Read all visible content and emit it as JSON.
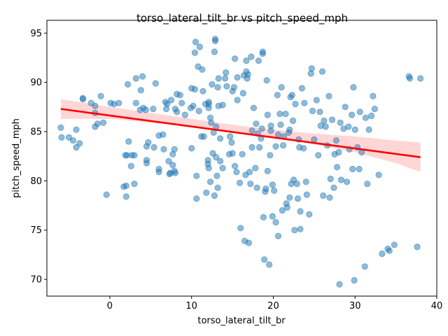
{
  "chart_data": {
    "type": "scatter",
    "title": "torso_lateral_tilt_br vs pitch_speed_mph",
    "xlabel": "torso_lateral_tilt_br",
    "ylabel": "pitch_speed_mph",
    "xlim": [
      -7.7,
      40
    ],
    "ylim": [
      68.3,
      96.3
    ],
    "xticks": [
      0,
      10,
      20,
      30,
      40
    ],
    "yticks": [
      70,
      75,
      80,
      85,
      90,
      95
    ],
    "grid": false,
    "point_color": "#1f77b4",
    "regression_color": "#ff0000",
    "band_color": "#ffbbbb",
    "regression": {
      "x0": -6,
      "y0": 87.3,
      "x1": 38,
      "y1": 82.4
    },
    "confidence_band": {
      "x": [
        -6,
        0,
        5,
        10,
        15,
        20,
        25,
        30,
        35,
        38
      ],
      "upper": [
        88.3,
        87.5,
        86.9,
        86.3,
        85.7,
        85.2,
        84.8,
        84.5,
        84.1,
        83.9
      ],
      "lower": [
        86.3,
        86.3,
        85.9,
        85.5,
        85.0,
        84.4,
        83.7,
        82.9,
        81.8,
        80.9
      ]
    },
    "points": [
      [
        -6,
        85.4
      ],
      [
        -5.9,
        84.4
      ],
      [
        -5.0,
        84.4
      ],
      [
        -4.5,
        84.1
      ],
      [
        -4.1,
        85.2
      ],
      [
        -4.1,
        83.4
      ],
      [
        -3.7,
        83.8
      ],
      [
        -3.3,
        88.3
      ],
      [
        -3.3,
        88.4
      ],
      [
        -2.3,
        87.9
      ],
      [
        -1.8,
        87.6
      ],
      [
        -1.8,
        86.9
      ],
      [
        -1.8,
        85.5
      ],
      [
        -1.5,
        85.8
      ],
      [
        -1.1,
        88.6
      ],
      [
        -0.8,
        85.9
      ],
      [
        -0.4,
        78.6
      ],
      [
        0.1,
        87.9
      ],
      [
        0.5,
        87.8
      ],
      [
        1.1,
        87.9
      ],
      [
        1.7,
        79.4
      ],
      [
        1.9,
        82.6
      ],
      [
        2.0,
        79.5
      ],
      [
        2.0,
        78.4
      ],
      [
        2.1,
        82.6
      ],
      [
        2.2,
        89.8
      ],
      [
        2.3,
        84
      ],
      [
        2.6,
        81.5
      ],
      [
        2.7,
        82.6
      ],
      [
        3,
        82.6
      ],
      [
        3,
        79.7
      ],
      [
        3.2,
        90.4
      ],
      [
        3.2,
        87.9
      ],
      [
        3.7,
        87.2
      ],
      [
        3.8,
        89.2
      ],
      [
        4,
        90.6
      ],
      [
        4.1,
        87.4
      ],
      [
        4.4,
        87.2
      ],
      [
        4.5,
        83.5
      ],
      [
        4.5,
        82.1
      ],
      [
        4.5,
        81.8
      ],
      [
        4.7,
        83.9
      ],
      [
        5.3,
        87.3
      ],
      [
        5.4,
        83.4
      ],
      [
        5.6,
        89.9
      ],
      [
        6,
        84.6
      ],
      [
        6,
        81.2
      ],
      [
        6,
        80.9
      ],
      [
        6.5,
        84.7
      ],
      [
        6.6,
        83.2
      ],
      [
        6.8,
        88
      ],
      [
        6.9,
        87.3
      ],
      [
        7.0,
        87.8
      ],
      [
        7.2,
        82
      ],
      [
        7.3,
        80.7
      ],
      [
        7.4,
        80.8
      ],
      [
        7.5,
        88.2
      ],
      [
        7.7,
        82.7
      ],
      [
        7.7,
        81.6
      ],
      [
        7.9,
        83.2
      ],
      [
        7.9,
        81
      ],
      [
        8,
        80.8
      ],
      [
        8,
        87.3
      ],
      [
        8.2,
        88.8
      ],
      [
        8.2,
        87
      ],
      [
        8.6,
        88.7
      ],
      [
        8.8,
        87.9
      ],
      [
        9.2,
        86.7
      ],
      [
        9.9,
        87.4
      ],
      [
        10,
        83.3
      ],
      [
        10,
        89.4
      ],
      [
        10.2,
        87.6
      ],
      [
        10.4,
        89.3
      ],
      [
        10.4,
        93
      ],
      [
        10.5,
        94.1
      ],
      [
        10.6,
        78.2
      ],
      [
        10.6,
        80.5
      ],
      [
        10.8,
        91.6
      ],
      [
        10.9,
        87.1
      ],
      [
        11,
        93.6
      ],
      [
        11.2,
        84.5
      ],
      [
        11.3,
        91.3
      ],
      [
        11.4,
        89.1
      ],
      [
        11.5,
        84.5
      ],
      [
        11.7,
        87.8
      ],
      [
        11.8,
        78.8
      ],
      [
        12,
        82.1
      ],
      [
        12,
        81.7
      ],
      [
        12.1,
        81.3
      ],
      [
        12.1,
        87.8
      ],
      [
        12.1,
        88
      ],
      [
        12.1,
        87.4
      ],
      [
        12.3,
        86.4
      ],
      [
        12.3,
        79.9
      ],
      [
        12.4,
        85.9
      ],
      [
        12.5,
        89.8
      ],
      [
        12.6,
        82.8
      ],
      [
        12.7,
        84.9
      ],
      [
        12.8,
        78.5
      ],
      [
        12.8,
        93.1
      ],
      [
        12.9,
        94.2
      ],
      [
        12.9,
        94.4
      ],
      [
        13,
        85.5
      ],
      [
        13,
        82.4
      ],
      [
        13.1,
        80.5
      ],
      [
        13.2,
        79.3
      ],
      [
        13.2,
        89.5
      ],
      [
        13.3,
        87.6
      ],
      [
        13.3,
        90.4
      ],
      [
        13.5,
        84.3
      ],
      [
        13.5,
        82
      ],
      [
        13.8,
        81.3
      ],
      [
        13.8,
        87.7
      ],
      [
        14.1,
        90.4
      ],
      [
        14.2,
        91
      ],
      [
        14.3,
        89.6
      ],
      [
        14.6,
        82.7
      ],
      [
        14.7,
        84.5
      ],
      [
        14.9,
        83.9
      ],
      [
        15.0,
        82.8
      ],
      [
        15.0,
        89.1
      ],
      [
        15.2,
        89.5
      ],
      [
        15.3,
        92.4
      ],
      [
        15.3,
        81.5
      ],
      [
        15.5,
        80.9
      ],
      [
        15.6,
        88.2
      ],
      [
        15.6,
        90.5
      ],
      [
        15.9,
        79.8
      ],
      [
        16,
        75.2
      ],
      [
        16.2,
        82.7
      ],
      [
        16.3,
        88.9
      ],
      [
        16.4,
        90.7
      ],
      [
        16.5,
        73.9
      ],
      [
        16.6,
        80.6
      ],
      [
        16.7,
        91.1
      ],
      [
        16.7,
        92.2
      ],
      [
        16.8,
        90.4
      ],
      [
        16.9,
        90.8
      ],
      [
        17,
        73.7
      ],
      [
        17.1,
        80.9
      ],
      [
        17.2,
        79.7
      ],
      [
        17.3,
        92.6
      ],
      [
        17.4,
        85.1
      ],
      [
        17.4,
        83.4
      ],
      [
        17.6,
        87.4
      ],
      [
        17.8,
        81.3
      ],
      [
        17.9,
        85.8
      ],
      [
        18,
        79.3
      ],
      [
        18.1,
        84.8
      ],
      [
        18.2,
        92.2
      ],
      [
        18.3,
        83.4
      ],
      [
        18.5,
        84.3
      ],
      [
        18.6,
        85.3
      ],
      [
        18.7,
        92.9
      ],
      [
        18.7,
        93.1
      ],
      [
        18.8,
        76.3
      ],
      [
        18.9,
        72
      ],
      [
        19,
        78.9
      ],
      [
        19.1,
        79.2
      ],
      [
        19.2,
        90.2
      ],
      [
        19.3,
        81
      ],
      [
        19.3,
        86.7
      ],
      [
        19.5,
        71.5
      ],
      [
        19.6,
        82.6
      ],
      [
        19.7,
        85.1
      ],
      [
        19.7,
        85.6
      ],
      [
        19.9,
        79.6
      ],
      [
        19.9,
        76.4
      ],
      [
        20.1,
        79
      ],
      [
        20.3,
        83.5
      ],
      [
        20.3,
        75.8
      ],
      [
        20.5,
        88.7
      ],
      [
        20.6,
        84.7
      ],
      [
        20.6,
        74.4
      ],
      [
        20.8,
        86.8
      ],
      [
        20.9,
        85.7
      ],
      [
        21.0,
        89.5
      ],
      [
        21.1,
        77.0
      ],
      [
        21.2,
        83.6
      ],
      [
        21.3,
        84.5
      ],
      [
        21.5,
        86.8
      ],
      [
        21.6,
        77.7
      ],
      [
        21.7,
        77.3
      ],
      [
        21.9,
        84.9
      ],
      [
        22,
        85.2
      ],
      [
        22,
        78.3
      ],
      [
        22.1,
        88.5
      ],
      [
        22.2,
        79.7
      ],
      [
        22.3,
        88.7
      ],
      [
        22.4,
        86.1
      ],
      [
        22.5,
        80.1
      ],
      [
        22.6,
        75
      ],
      [
        22.7,
        87.8
      ],
      [
        22.9,
        79.7
      ],
      [
        23,
        78.2
      ],
      [
        23.1,
        84.2
      ],
      [
        23.2,
        83.4
      ],
      [
        23.3,
        76.9
      ],
      [
        23.3,
        75.1
      ],
      [
        23.5,
        89.4
      ],
      [
        23.7,
        83.3
      ],
      [
        23.8,
        87.9
      ],
      [
        24,
        79.9
      ],
      [
        24.1,
        78.6
      ],
      [
        24.4,
        76.6
      ],
      [
        24.6,
        90.9
      ],
      [
        24.7,
        91.4
      ],
      [
        24.8,
        87.1
      ],
      [
        25,
        84.2
      ],
      [
        25.3,
        88.2
      ],
      [
        25.5,
        82.6
      ],
      [
        25.7,
        87.0
      ],
      [
        25.8,
        85.6
      ],
      [
        26,
        91.1
      ],
      [
        26.1,
        78.5
      ],
      [
        26.2,
        86.1
      ],
      [
        26.4,
        85.5
      ],
      [
        26.6,
        83.6
      ],
      [
        26.8,
        88.6
      ],
      [
        26.9,
        78.3
      ],
      [
        27,
        80.2
      ],
      [
        27.2,
        86.2
      ],
      [
        27.4,
        79.3
      ],
      [
        27.5,
        82.7
      ],
      [
        27.7,
        84.1
      ],
      [
        27.8,
        81.4
      ],
      [
        28,
        82.9
      ],
      [
        28.1,
        69.5
      ],
      [
        28.2,
        85.9
      ],
      [
        28.3,
        80.1
      ],
      [
        28.6,
        85.3
      ],
      [
        28.8,
        87.5
      ],
      [
        29,
        79.9
      ],
      [
        29.2,
        85.5
      ],
      [
        29.3,
        83.2
      ],
      [
        29.6,
        86.7
      ],
      [
        29.7,
        81.2
      ],
      [
        29.8,
        89.5
      ],
      [
        29.9,
        69.9
      ],
      [
        30,
        85.2
      ],
      [
        30.3,
        83.4
      ],
      [
        30.5,
        81.2
      ],
      [
        30.6,
        87
      ],
      [
        30.8,
        82.9
      ],
      [
        31.2,
        71.3
      ],
      [
        31.3,
        86.4
      ],
      [
        31.5,
        79.7
      ],
      [
        31.7,
        85.2
      ],
      [
        32,
        86.6
      ],
      [
        32.2,
        88.6
      ],
      [
        32.4,
        87.3
      ],
      [
        32.9,
        80.6
      ],
      [
        33.3,
        72.6
      ],
      [
        34,
        73.1
      ],
      [
        34.2,
        72.9
      ],
      [
        34.8,
        73.5
      ],
      [
        36.6,
        90.6
      ],
      [
        36.7,
        90.4
      ],
      [
        37.6,
        73.3
      ],
      [
        38,
        90.4
      ]
    ]
  }
}
